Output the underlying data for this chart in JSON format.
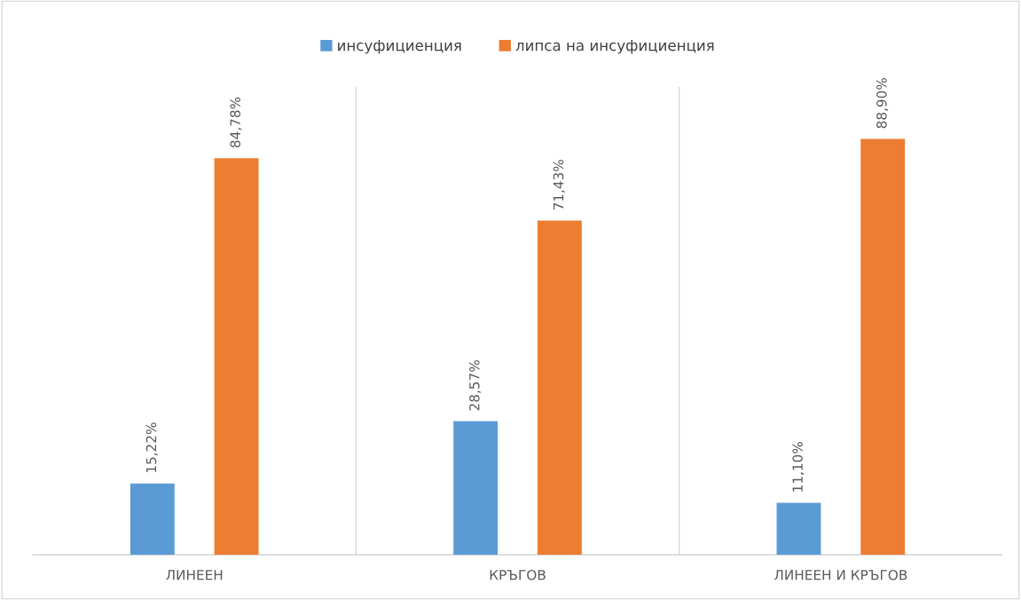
{
  "chart_data": {
    "type": "bar",
    "categories": [
      "ЛИНЕЕН",
      "КРЪГОВ",
      "ЛИНЕЕН И КРЪГОВ"
    ],
    "series": [
      {
        "name": "инсуфициенция",
        "color": "#5b9bd5",
        "values": [
          15.22,
          28.57,
          11.1
        ],
        "value_labels": [
          "15,22%",
          "28,57%",
          "11,10%"
        ]
      },
      {
        "name": "липса на инсуфициенция",
        "color": "#ed7d31",
        "values": [
          84.78,
          71.43,
          88.9
        ],
        "value_labels": [
          "84,78%",
          "71,43%",
          "88,90%"
        ]
      }
    ],
    "ylim": [
      0,
      100
    ],
    "tick_labels": "x",
    "grid": "x",
    "legend": "top"
  }
}
